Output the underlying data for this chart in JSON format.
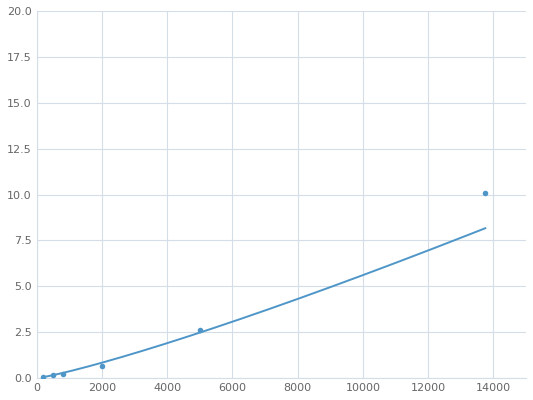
{
  "x": [
    200,
    500,
    800,
    2000,
    5000,
    13750
  ],
  "y": [
    0.08,
    0.15,
    0.22,
    0.65,
    2.6,
    10.1
  ],
  "line_color": "#4f96c8",
  "marker_color": "#4f96c8",
  "marker_size": 4,
  "xlim": [
    0,
    15000
  ],
  "ylim": [
    0,
    20
  ],
  "xticks": [
    0,
    2000,
    4000,
    6000,
    8000,
    10000,
    12000,
    14000
  ],
  "yticks": [
    0.0,
    2.5,
    5.0,
    7.5,
    10.0,
    12.5,
    15.0,
    17.5,
    20.0
  ],
  "grid_color": "#d5dde8",
  "background_color": "#ffffff",
  "figure_bg": "#ffffff"
}
